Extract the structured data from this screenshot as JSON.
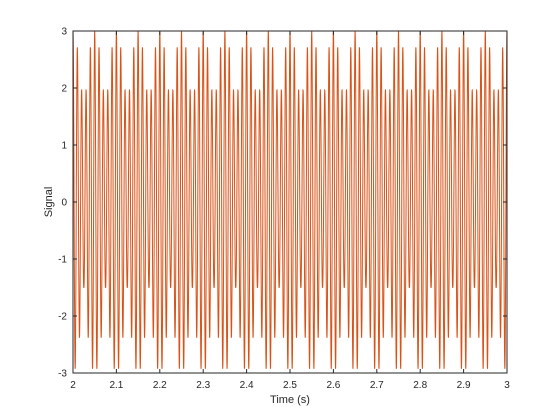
{
  "chart_data": {
    "type": "line",
    "title": "",
    "xlabel": "Time (s)",
    "ylabel": "Signal",
    "xlim": [
      2,
      3
    ],
    "ylim": [
      -3,
      3
    ],
    "x_ticks": [
      "2",
      "2.1",
      "2.2",
      "2.3",
      "2.4",
      "2.5",
      "2.6",
      "2.7",
      "2.8",
      "2.9",
      "3"
    ],
    "y_ticks": [
      "-3",
      "-2",
      "-1",
      "0",
      "1",
      "2",
      "3"
    ],
    "grid": false,
    "series": [
      {
        "color": "#d95319",
        "x_range": [
          2,
          3
        ],
        "amplitude_peak": 3,
        "carrier_cycles_per_second": 100,
        "envelope_beats_per_second": 20
      }
    ]
  }
}
